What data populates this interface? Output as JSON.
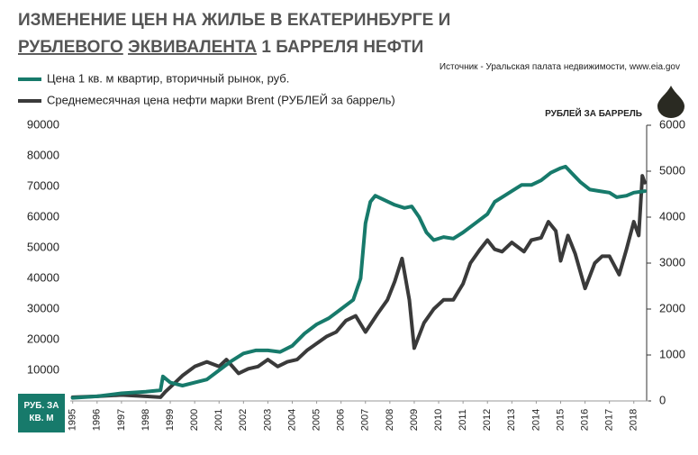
{
  "chart_data": {
    "type": "line",
    "title": [
      "ИЗМЕНЕНИЕ ЦЕН НА ЖИЛЬЕ В ЕКАТЕРИНБУРГЕ И",
      "РУБЛЕВОГО",
      "ЭКВИВАЛЕНТА",
      "1 БАРРЕЛЯ НЕФТИ"
    ],
    "source": "Источник - Уральская палата недвижимости, www.eia.gov",
    "y_label": [
      "РУБ. ЗА",
      "КВ. М"
    ],
    "y2_label": "РУБЛЕЙ ЗА БАРРЕЛЬ",
    "xlim": [
      1994.9,
      2018.6
    ],
    "xticks": [
      1995,
      1996,
      1997,
      1998,
      1999,
      2000,
      2001,
      2002,
      2003,
      2004,
      2005,
      2006,
      2007,
      2008,
      2009,
      2010,
      2011,
      2012,
      2013,
      2014,
      2015,
      2016,
      2017,
      2018
    ],
    "ylim": [
      0,
      90000
    ],
    "yticks": [
      0,
      10000,
      20000,
      30000,
      40000,
      50000,
      60000,
      70000,
      80000,
      90000
    ],
    "y2lim": [
      0,
      6000
    ],
    "y2ticks": [
      0,
      1000,
      2000,
      3000,
      4000,
      5000,
      6000
    ],
    "series": [
      {
        "name": "Цена 1 кв. м квартир, вторичный рынок, руб.",
        "color": "#177a6b",
        "x": [
          1995,
          1996,
          1997,
          1998,
          1998.6,
          1998.7,
          1999,
          1999.5,
          2000,
          2000.5,
          2001,
          2001.5,
          2002,
          2002.5,
          2003,
          2003.5,
          2004,
          2004.5,
          2005,
          2005.5,
          2006,
          2006.5,
          2006.8,
          2007,
          2007.2,
          2007.4,
          2007.8,
          2008.2,
          2008.6,
          2008.9,
          2009.2,
          2009.5,
          2009.8,
          2010.2,
          2010.6,
          2011,
          2011.5,
          2012,
          2012.3,
          2012.7,
          2013,
          2013.4,
          2013.8,
          2014.2,
          2014.6,
          2015,
          2015.2,
          2015.5,
          2015.8,
          2016.2,
          2016.6,
          2017,
          2017.3,
          2017.7,
          2018,
          2018.45
        ],
        "values": [
          1000,
          1500,
          2500,
          3000,
          3500,
          8000,
          6000,
          5000,
          6000,
          7000,
          10000,
          13000,
          15500,
          16500,
          16500,
          16000,
          18000,
          22000,
          25000,
          27000,
          30000,
          33000,
          40000,
          58000,
          65000,
          67000,
          65500,
          64000,
          63000,
          63500,
          60000,
          55000,
          52500,
          53500,
          53000,
          55000,
          58000,
          61000,
          65000,
          67000,
          68500,
          70500,
          70500,
          72000,
          74500,
          76000,
          76500,
          74000,
          71500,
          69000,
          68500,
          68000,
          66500,
          67000,
          68000,
          68500
        ]
      },
      {
        "name": "Среднемесячная цена нефти марки Brent (РУБЛЕЙ за баррель)",
        "color": "#3a3a3a",
        "axis": "y2",
        "x": [
          1995,
          1996,
          1997,
          1998,
          1998.6,
          1998.8,
          1999,
          1999.5,
          2000,
          2000.5,
          2001,
          2001.3,
          2001.8,
          2002.2,
          2002.6,
          2003,
          2003.4,
          2003.8,
          2004.2,
          2004.6,
          2005,
          2005.4,
          2005.8,
          2006.2,
          2006.6,
          2007,
          2007.5,
          2007.9,
          2008.2,
          2008.5,
          2008.8,
          2009,
          2009.4,
          2009.8,
          2010.2,
          2010.6,
          2011,
          2011.3,
          2011.7,
          2012,
          2012.3,
          2012.6,
          2013,
          2013.5,
          2013.8,
          2014.2,
          2014.5,
          2014.8,
          2015,
          2015.3,
          2015.6,
          2016,
          2016.4,
          2016.7,
          2017,
          2017.4,
          2017.7,
          2018,
          2018.2,
          2018.35,
          2018.45
        ],
        "values": [
          80,
          100,
          130,
          100,
          80,
          200,
          300,
          550,
          750,
          850,
          750,
          900,
          600,
          700,
          750,
          900,
          750,
          850,
          900,
          1100,
          1250,
          1400,
          1500,
          1750,
          1850,
          1500,
          1900,
          2200,
          2600,
          3100,
          2200,
          1150,
          1700,
          2000,
          2200,
          2200,
          2550,
          3000,
          3300,
          3500,
          3300,
          3250,
          3450,
          3250,
          3500,
          3550,
          3900,
          3700,
          3050,
          3600,
          3200,
          2450,
          3000,
          3150,
          3150,
          2750,
          3300,
          3900,
          3600,
          4900,
          4750
        ]
      }
    ]
  }
}
